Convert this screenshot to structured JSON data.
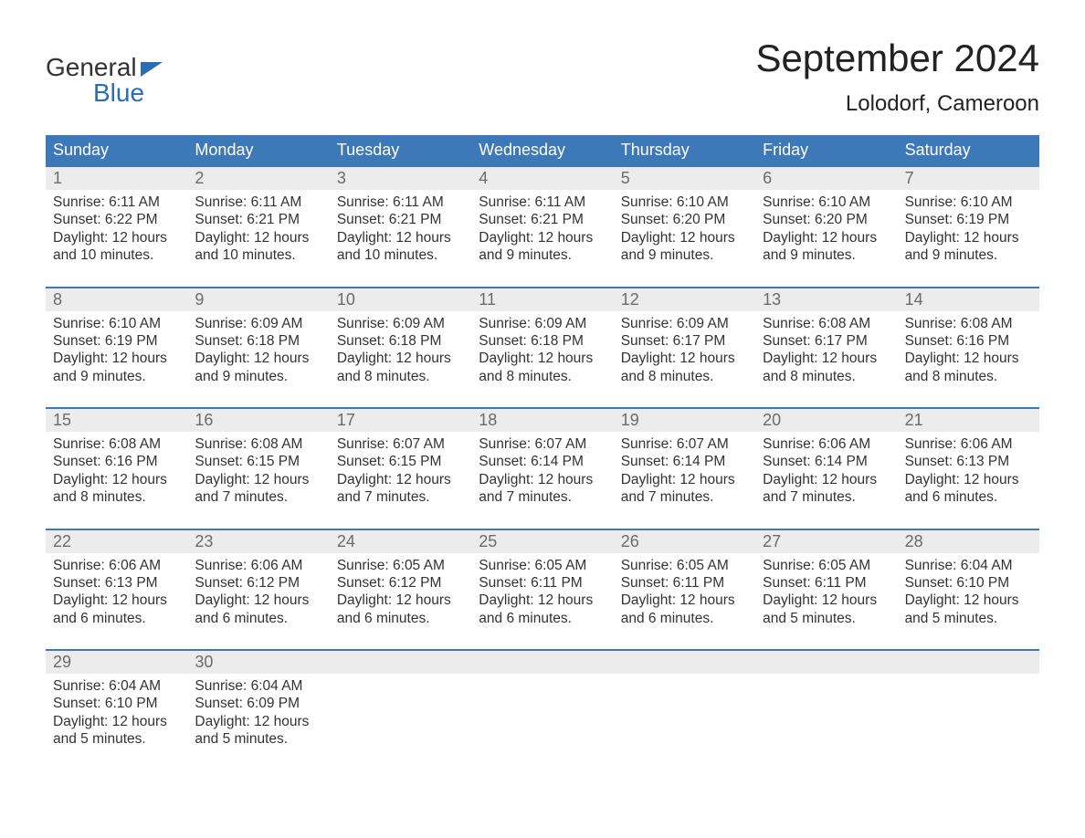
{
  "logo": {
    "line1": "General",
    "line2": "Blue"
  },
  "title": "September 2024",
  "location": "Lolodorf, Cameroon",
  "colors": {
    "brand_blue": "#3d78b8",
    "logo_blue": "#2a6db3",
    "daynum_bg": "#ececec",
    "daynum_text": "#6b6b6b",
    "body_text": "#333333",
    "background": "#ffffff"
  },
  "typography": {
    "title_fontsize": 42,
    "location_fontsize": 24,
    "header_fontsize": 18,
    "cell_fontsize": 15.5,
    "logo_fontsize": 28
  },
  "day_headers": [
    "Sunday",
    "Monday",
    "Tuesday",
    "Wednesday",
    "Thursday",
    "Friday",
    "Saturday"
  ],
  "weeks": [
    [
      {
        "num": "1",
        "sunrise": "Sunrise: 6:11 AM",
        "sunset": "Sunset: 6:22 PM",
        "daylight": "Daylight: 12 hours and 10 minutes."
      },
      {
        "num": "2",
        "sunrise": "Sunrise: 6:11 AM",
        "sunset": "Sunset: 6:21 PM",
        "daylight": "Daylight: 12 hours and 10 minutes."
      },
      {
        "num": "3",
        "sunrise": "Sunrise: 6:11 AM",
        "sunset": "Sunset: 6:21 PM",
        "daylight": "Daylight: 12 hours and 10 minutes."
      },
      {
        "num": "4",
        "sunrise": "Sunrise: 6:11 AM",
        "sunset": "Sunset: 6:21 PM",
        "daylight": "Daylight: 12 hours and 9 minutes."
      },
      {
        "num": "5",
        "sunrise": "Sunrise: 6:10 AM",
        "sunset": "Sunset: 6:20 PM",
        "daylight": "Daylight: 12 hours and 9 minutes."
      },
      {
        "num": "6",
        "sunrise": "Sunrise: 6:10 AM",
        "sunset": "Sunset: 6:20 PM",
        "daylight": "Daylight: 12 hours and 9 minutes."
      },
      {
        "num": "7",
        "sunrise": "Sunrise: 6:10 AM",
        "sunset": "Sunset: 6:19 PM",
        "daylight": "Daylight: 12 hours and 9 minutes."
      }
    ],
    [
      {
        "num": "8",
        "sunrise": "Sunrise: 6:10 AM",
        "sunset": "Sunset: 6:19 PM",
        "daylight": "Daylight: 12 hours and 9 minutes."
      },
      {
        "num": "9",
        "sunrise": "Sunrise: 6:09 AM",
        "sunset": "Sunset: 6:18 PM",
        "daylight": "Daylight: 12 hours and 9 minutes."
      },
      {
        "num": "10",
        "sunrise": "Sunrise: 6:09 AM",
        "sunset": "Sunset: 6:18 PM",
        "daylight": "Daylight: 12 hours and 8 minutes."
      },
      {
        "num": "11",
        "sunrise": "Sunrise: 6:09 AM",
        "sunset": "Sunset: 6:18 PM",
        "daylight": "Daylight: 12 hours and 8 minutes."
      },
      {
        "num": "12",
        "sunrise": "Sunrise: 6:09 AM",
        "sunset": "Sunset: 6:17 PM",
        "daylight": "Daylight: 12 hours and 8 minutes."
      },
      {
        "num": "13",
        "sunrise": "Sunrise: 6:08 AM",
        "sunset": "Sunset: 6:17 PM",
        "daylight": "Daylight: 12 hours and 8 minutes."
      },
      {
        "num": "14",
        "sunrise": "Sunrise: 6:08 AM",
        "sunset": "Sunset: 6:16 PM",
        "daylight": "Daylight: 12 hours and 8 minutes."
      }
    ],
    [
      {
        "num": "15",
        "sunrise": "Sunrise: 6:08 AM",
        "sunset": "Sunset: 6:16 PM",
        "daylight": "Daylight: 12 hours and 8 minutes."
      },
      {
        "num": "16",
        "sunrise": "Sunrise: 6:08 AM",
        "sunset": "Sunset: 6:15 PM",
        "daylight": "Daylight: 12 hours and 7 minutes."
      },
      {
        "num": "17",
        "sunrise": "Sunrise: 6:07 AM",
        "sunset": "Sunset: 6:15 PM",
        "daylight": "Daylight: 12 hours and 7 minutes."
      },
      {
        "num": "18",
        "sunrise": "Sunrise: 6:07 AM",
        "sunset": "Sunset: 6:14 PM",
        "daylight": "Daylight: 12 hours and 7 minutes."
      },
      {
        "num": "19",
        "sunrise": "Sunrise: 6:07 AM",
        "sunset": "Sunset: 6:14 PM",
        "daylight": "Daylight: 12 hours and 7 minutes."
      },
      {
        "num": "20",
        "sunrise": "Sunrise: 6:06 AM",
        "sunset": "Sunset: 6:14 PM",
        "daylight": "Daylight: 12 hours and 7 minutes."
      },
      {
        "num": "21",
        "sunrise": "Sunrise: 6:06 AM",
        "sunset": "Sunset: 6:13 PM",
        "daylight": "Daylight: 12 hours and 6 minutes."
      }
    ],
    [
      {
        "num": "22",
        "sunrise": "Sunrise: 6:06 AM",
        "sunset": "Sunset: 6:13 PM",
        "daylight": "Daylight: 12 hours and 6 minutes."
      },
      {
        "num": "23",
        "sunrise": "Sunrise: 6:06 AM",
        "sunset": "Sunset: 6:12 PM",
        "daylight": "Daylight: 12 hours and 6 minutes."
      },
      {
        "num": "24",
        "sunrise": "Sunrise: 6:05 AM",
        "sunset": "Sunset: 6:12 PM",
        "daylight": "Daylight: 12 hours and 6 minutes."
      },
      {
        "num": "25",
        "sunrise": "Sunrise: 6:05 AM",
        "sunset": "Sunset: 6:11 PM",
        "daylight": "Daylight: 12 hours and 6 minutes."
      },
      {
        "num": "26",
        "sunrise": "Sunrise: 6:05 AM",
        "sunset": "Sunset: 6:11 PM",
        "daylight": "Daylight: 12 hours and 6 minutes."
      },
      {
        "num": "27",
        "sunrise": "Sunrise: 6:05 AM",
        "sunset": "Sunset: 6:11 PM",
        "daylight": "Daylight: 12 hours and 5 minutes."
      },
      {
        "num": "28",
        "sunrise": "Sunrise: 6:04 AM",
        "sunset": "Sunset: 6:10 PM",
        "daylight": "Daylight: 12 hours and 5 minutes."
      }
    ],
    [
      {
        "num": "29",
        "sunrise": "Sunrise: 6:04 AM",
        "sunset": "Sunset: 6:10 PM",
        "daylight": "Daylight: 12 hours and 5 minutes."
      },
      {
        "num": "30",
        "sunrise": "Sunrise: 6:04 AM",
        "sunset": "Sunset: 6:09 PM",
        "daylight": "Daylight: 12 hours and 5 minutes."
      },
      null,
      null,
      null,
      null,
      null
    ]
  ]
}
